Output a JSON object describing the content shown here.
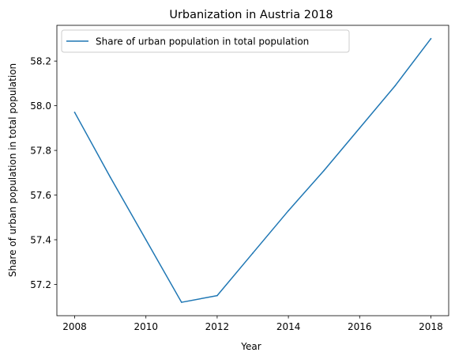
{
  "chart_data": {
    "type": "line",
    "title": "Urbanization in Austria 2018",
    "xlabel": "Year",
    "ylabel": "Share of urban population in total population",
    "x": [
      2008,
      2009,
      2010,
      2011,
      2012,
      2013,
      2014,
      2015,
      2016,
      2017,
      2018
    ],
    "series": [
      {
        "name": "Share of urban population in total population",
        "values": [
          57.97,
          57.68,
          57.4,
          57.12,
          57.15,
          57.34,
          57.53,
          57.71,
          57.9,
          58.09,
          58.3
        ],
        "color": "#1f77b4"
      }
    ],
    "xlim": [
      2007.5,
      2018.5
    ],
    "ylim": [
      57.06,
      58.36
    ],
    "xticks": [
      2008,
      2010,
      2012,
      2014,
      2016,
      2018
    ],
    "yticks": [
      57.2,
      57.4,
      57.6,
      57.8,
      58.0,
      58.2
    ],
    "ytick_labels": [
      "57.2",
      "57.4",
      "57.6",
      "57.8",
      "58.0",
      "58.2"
    ],
    "grid": false,
    "legend_position": "upper left"
  }
}
